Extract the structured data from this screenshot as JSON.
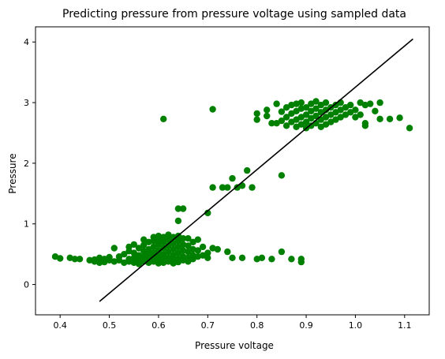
{
  "chart_data": {
    "type": "scatter",
    "title": "Predicting pressure from pressure voltage using sampled data",
    "xlabel": "Pressure voltage",
    "ylabel": "Pressure",
    "xlim": [
      0.35,
      1.15
    ],
    "ylim": [
      -0.5,
      4.25
    ],
    "xticks": [
      {
        "value": 0.4,
        "label": "0.4"
      },
      {
        "value": 0.5,
        "label": "0.5"
      },
      {
        "value": 0.6,
        "label": "0.6"
      },
      {
        "value": 0.7,
        "label": "0.7"
      },
      {
        "value": 0.8,
        "label": "0.8"
      },
      {
        "value": 0.9,
        "label": "0.9"
      },
      {
        "value": 1.0,
        "label": "1.0"
      },
      {
        "value": 1.1,
        "label": "1.1"
      }
    ],
    "yticks": [
      {
        "value": 0,
        "label": "0"
      },
      {
        "value": 1,
        "label": "1"
      },
      {
        "value": 2,
        "label": "2"
      },
      {
        "value": 3,
        "label": "3"
      },
      {
        "value": 4,
        "label": "4"
      }
    ],
    "grid": false,
    "legend": "none",
    "point_color": "#008000",
    "line_color": "#000000",
    "points": [
      [
        0.39,
        0.46
      ],
      [
        0.4,
        0.43
      ],
      [
        0.42,
        0.44
      ],
      [
        0.43,
        0.42
      ],
      [
        0.44,
        0.42
      ],
      [
        0.46,
        0.4
      ],
      [
        0.47,
        0.41
      ],
      [
        0.47,
        0.38
      ],
      [
        0.48,
        0.44
      ],
      [
        0.48,
        0.36
      ],
      [
        0.49,
        0.42
      ],
      [
        0.49,
        0.37
      ],
      [
        0.5,
        0.4
      ],
      [
        0.5,
        0.45
      ],
      [
        0.51,
        0.6
      ],
      [
        0.51,
        0.38
      ],
      [
        0.52,
        0.4
      ],
      [
        0.52,
        0.46
      ],
      [
        0.53,
        0.36
      ],
      [
        0.53,
        0.5
      ],
      [
        0.54,
        0.42
      ],
      [
        0.54,
        0.55
      ],
      [
        0.54,
        0.38
      ],
      [
        0.55,
        0.44
      ],
      [
        0.55,
        0.52
      ],
      [
        0.55,
        0.36
      ],
      [
        0.56,
        0.48
      ],
      [
        0.56,
        0.4
      ],
      [
        0.56,
        0.6
      ],
      [
        0.56,
        0.34
      ],
      [
        0.57,
        0.46
      ],
      [
        0.57,
        0.55
      ],
      [
        0.57,
        0.38
      ],
      [
        0.57,
        0.65
      ],
      [
        0.58,
        0.42
      ],
      [
        0.58,
        0.5
      ],
      [
        0.58,
        0.58
      ],
      [
        0.58,
        0.36
      ],
      [
        0.58,
        0.7
      ],
      [
        0.59,
        0.44
      ],
      [
        0.59,
        0.52
      ],
      [
        0.59,
        0.62
      ],
      [
        0.59,
        0.38
      ],
      [
        0.59,
        0.72
      ],
      [
        0.6,
        0.4
      ],
      [
        0.6,
        0.48
      ],
      [
        0.6,
        0.56
      ],
      [
        0.6,
        0.66
      ],
      [
        0.6,
        0.35
      ],
      [
        0.6,
        0.74
      ],
      [
        0.61,
        0.42
      ],
      [
        0.61,
        0.5
      ],
      [
        0.61,
        0.6
      ],
      [
        0.61,
        0.7
      ],
      [
        0.61,
        0.36
      ],
      [
        0.61,
        0.78
      ],
      [
        0.62,
        0.44
      ],
      [
        0.62,
        0.54
      ],
      [
        0.62,
        0.64
      ],
      [
        0.62,
        0.38
      ],
      [
        0.62,
        0.74
      ],
      [
        0.63,
        0.4
      ],
      [
        0.63,
        0.48
      ],
      [
        0.63,
        0.58
      ],
      [
        0.63,
        0.68
      ],
      [
        0.63,
        0.35
      ],
      [
        0.63,
        0.78
      ],
      [
        0.64,
        0.42
      ],
      [
        0.64,
        0.52
      ],
      [
        0.64,
        0.62
      ],
      [
        0.64,
        0.72
      ],
      [
        0.64,
        0.37
      ],
      [
        0.65,
        0.46
      ],
      [
        0.65,
        0.56
      ],
      [
        0.65,
        0.66
      ],
      [
        0.65,
        0.4
      ],
      [
        0.65,
        0.76
      ],
      [
        0.66,
        0.44
      ],
      [
        0.66,
        0.54
      ],
      [
        0.66,
        0.64
      ],
      [
        0.66,
        0.38
      ],
      [
        0.67,
        0.48
      ],
      [
        0.67,
        0.58
      ],
      [
        0.67,
        0.42
      ],
      [
        0.67,
        0.7
      ],
      [
        0.68,
        0.46
      ],
      [
        0.68,
        0.56
      ],
      [
        0.68,
        0.74
      ],
      [
        0.69,
        0.48
      ],
      [
        0.69,
        0.62
      ],
      [
        0.7,
        0.52
      ],
      [
        0.7,
        0.44
      ],
      [
        0.71,
        0.6
      ],
      [
        0.72,
        0.58
      ],
      [
        0.74,
        0.54
      ],
      [
        0.75,
        0.44
      ],
      [
        0.77,
        0.44
      ],
      [
        0.8,
        0.42
      ],
      [
        0.81,
        0.44
      ],
      [
        0.83,
        0.42
      ],
      [
        0.85,
        0.54
      ],
      [
        0.87,
        0.42
      ],
      [
        0.89,
        0.42
      ],
      [
        0.89,
        0.37
      ],
      [
        0.54,
        0.62
      ],
      [
        0.55,
        0.66
      ],
      [
        0.57,
        0.74
      ],
      [
        0.59,
        0.78
      ],
      [
        0.6,
        0.8
      ],
      [
        0.62,
        0.82
      ],
      [
        0.64,
        0.8
      ],
      [
        0.66,
        0.76
      ],
      [
        0.61,
        2.73
      ],
      [
        0.71,
        2.89
      ],
      [
        0.64,
        1.05
      ],
      [
        0.64,
        1.25
      ],
      [
        0.65,
        1.25
      ],
      [
        0.7,
        1.18
      ],
      [
        0.71,
        1.6
      ],
      [
        0.73,
        1.6
      ],
      [
        0.74,
        1.6
      ],
      [
        0.75,
        1.75
      ],
      [
        0.76,
        1.6
      ],
      [
        0.77,
        1.63
      ],
      [
        0.78,
        1.88
      ],
      [
        0.79,
        1.6
      ],
      [
        0.85,
        1.8
      ],
      [
        0.8,
        2.82
      ],
      [
        0.8,
        2.72
      ],
      [
        0.82,
        2.88
      ],
      [
        0.82,
        2.78
      ],
      [
        0.83,
        2.66
      ],
      [
        0.84,
        2.98
      ],
      [
        0.84,
        2.66
      ],
      [
        0.85,
        2.7
      ],
      [
        0.85,
        2.85
      ],
      [
        0.86,
        2.62
      ],
      [
        0.86,
        2.76
      ],
      [
        0.86,
        2.92
      ],
      [
        0.87,
        2.68
      ],
      [
        0.87,
        2.82
      ],
      [
        0.87,
        2.96
      ],
      [
        0.88,
        2.6
      ],
      [
        0.88,
        2.72
      ],
      [
        0.88,
        2.86
      ],
      [
        0.88,
        2.98
      ],
      [
        0.89,
        2.64
      ],
      [
        0.89,
        2.76
      ],
      [
        0.89,
        2.9
      ],
      [
        0.89,
        3.0
      ],
      [
        0.9,
        2.58
      ],
      [
        0.9,
        2.68
      ],
      [
        0.9,
        2.8
      ],
      [
        0.9,
        2.92
      ],
      [
        0.91,
        2.62
      ],
      [
        0.91,
        2.74
      ],
      [
        0.91,
        2.86
      ],
      [
        0.91,
        2.98
      ],
      [
        0.92,
        2.66
      ],
      [
        0.92,
        2.78
      ],
      [
        0.92,
        2.9
      ],
      [
        0.92,
        3.02
      ],
      [
        0.93,
        2.6
      ],
      [
        0.93,
        2.72
      ],
      [
        0.93,
        2.84
      ],
      [
        0.93,
        2.96
      ],
      [
        0.94,
        2.64
      ],
      [
        0.94,
        2.76
      ],
      [
        0.94,
        2.88
      ],
      [
        0.94,
        3.0
      ],
      [
        0.95,
        2.68
      ],
      [
        0.95,
        2.8
      ],
      [
        0.95,
        2.92
      ],
      [
        0.96,
        2.72
      ],
      [
        0.96,
        2.84
      ],
      [
        0.96,
        2.96
      ],
      [
        0.97,
        2.76
      ],
      [
        0.97,
        2.88
      ],
      [
        0.97,
        3.0
      ],
      [
        0.98,
        2.8
      ],
      [
        0.98,
        2.92
      ],
      [
        0.99,
        2.84
      ],
      [
        0.99,
        2.96
      ],
      [
        1.0,
        2.88
      ],
      [
        1.0,
        2.76
      ],
      [
        1.01,
        3.0
      ],
      [
        1.01,
        2.8
      ],
      [
        1.02,
        2.62
      ],
      [
        1.02,
        2.66
      ],
      [
        1.02,
        2.96
      ],
      [
        1.03,
        2.98
      ],
      [
        1.04,
        2.86
      ],
      [
        1.05,
        3.0
      ],
      [
        1.05,
        2.73
      ],
      [
        1.07,
        2.73
      ],
      [
        1.09,
        2.75
      ],
      [
        1.11,
        2.58
      ]
    ],
    "regression_line": {
      "x": [
        0.48,
        1.117
      ],
      "y": [
        -0.28,
        4.05
      ]
    }
  }
}
